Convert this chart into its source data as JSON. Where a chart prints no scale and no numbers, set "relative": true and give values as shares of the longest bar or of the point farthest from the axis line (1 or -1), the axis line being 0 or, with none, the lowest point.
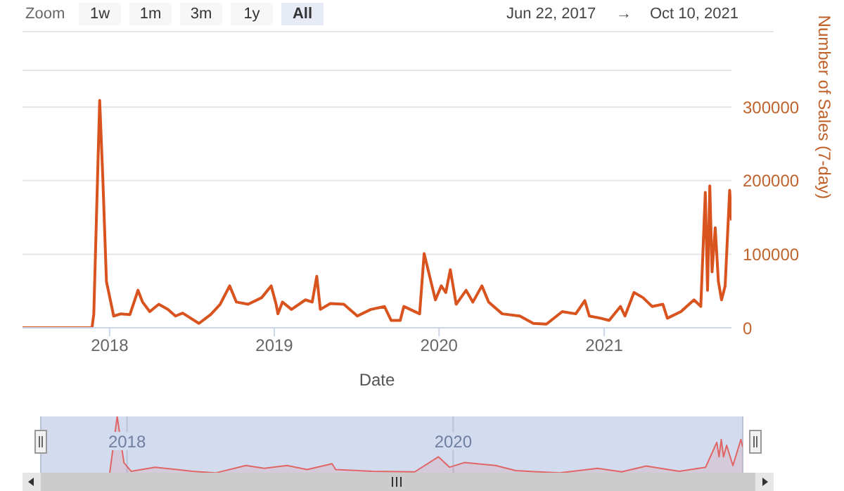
{
  "chart_data": [
    {
      "type": "line",
      "xlabel": "Date",
      "ylabel": "Number of Sales (7-day)",
      "annotations": [
        "Zoom",
        "1w",
        "1m",
        "3m",
        "1y",
        "All",
        "Jun 22, 2017",
        "→",
        "Oct 10, 2021"
      ],
      "x": [
        "2017-06-22",
        "2017-11-23",
        "2017-11-27",
        "2017-12-10",
        "2017-12-17",
        "2017-12-25",
        "2018-01-10",
        "2018-01-26",
        "2018-02-15",
        "2018-03-05",
        "2018-03-15",
        "2018-03-31",
        "2018-04-20",
        "2018-05-10",
        "2018-05-27",
        "2018-06-12",
        "2018-07-18",
        "2018-08-13",
        "2018-09-03",
        "2018-09-24",
        "2018-10-09",
        "2018-11-04",
        "2018-12-04",
        "2018-12-25",
        "2019-01-05",
        "2019-01-09",
        "2019-01-19",
        "2019-02-08",
        "2019-03-11",
        "2019-03-26",
        "2019-04-05",
        "2019-04-13",
        "2019-05-05",
        "2019-06-04",
        "2019-07-04",
        "2019-08-03",
        "2019-09-02",
        "2019-09-17",
        "2019-10-07",
        "2019-10-15",
        "2019-11-19",
        "2019-11-29",
        "2019-12-14",
        "2019-12-24",
        "2020-01-06",
        "2020-01-16",
        "2020-01-26",
        "2020-02-08",
        "2020-03-01",
        "2020-03-16",
        "2020-04-05",
        "2020-04-20",
        "2020-05-20",
        "2020-06-28",
        "2020-07-28",
        "2020-08-26",
        "2020-09-30",
        "2020-10-30",
        "2020-11-19",
        "2020-11-29",
        "2020-12-24",
        "2021-01-12",
        "2021-02-06",
        "2021-02-16",
        "2021-03-08",
        "2021-03-28",
        "2021-04-17",
        "2021-05-11",
        "2021-05-21",
        "2021-06-20",
        "2021-07-19",
        "2021-08-03",
        "2021-08-13",
        "2021-08-18",
        "2021-08-23",
        "2021-08-28",
        "2021-09-04",
        "2021-09-11",
        "2021-09-18",
        "2021-09-26",
        "2021-10-06",
        "2021-10-10"
      ],
      "series": [
        {
          "color": "#d9531e",
          "values": [
            0,
            0,
            19000,
            309000,
            203000,
            63000,
            16000,
            19000,
            18000,
            51000,
            35000,
            22000,
            32000,
            25000,
            16000,
            20000,
            6000,
            18000,
            32000,
            57000,
            35000,
            32000,
            41000,
            57000,
            32000,
            19000,
            35000,
            25000,
            38000,
            35000,
            70000,
            25000,
            33000,
            32000,
            16000,
            25000,
            29000,
            10000,
            10000,
            29000,
            19000,
            101000,
            63000,
            38000,
            57000,
            48000,
            79000,
            32000,
            51000,
            35000,
            57000,
            35000,
            19000,
            16000,
            6000,
            5000,
            22000,
            19000,
            37000,
            16000,
            13000,
            10000,
            29000,
            16000,
            48000,
            41000,
            29000,
            32000,
            13000,
            22000,
            38000,
            29000,
            184000,
            51000,
            193000,
            76000,
            136000,
            63000,
            38000,
            57000,
            187000,
            146000
          ]
        }
      ],
      "xlim": [
        "2017-06-22",
        "2021-10-10"
      ],
      "xticks": [
        "2018",
        "2019",
        "2020",
        "2021"
      ],
      "ylim": [
        0,
        350000
      ],
      "yticks": [
        0,
        100000,
        200000,
        300000
      ],
      "grid": "y"
    },
    {
      "type": "area",
      "relative": true,
      "tick_labels": "x",
      "grid": "x",
      "x": [
        "2017-06-22",
        "2017-11-23",
        "2017-12-10",
        "2017-12-25",
        "2018-01-10",
        "2018-03-05",
        "2018-05-27",
        "2018-07-18",
        "2018-09-24",
        "2018-11-04",
        "2018-12-25",
        "2019-02-08",
        "2019-04-05",
        "2019-04-13",
        "2019-07-04",
        "2019-10-07",
        "2019-11-29",
        "2019-12-24",
        "2020-01-26",
        "2020-04-05",
        "2020-05-20",
        "2020-08-26",
        "2020-11-19",
        "2021-01-12",
        "2021-03-08",
        "2021-05-21",
        "2021-07-19",
        "2021-08-13",
        "2021-08-18",
        "2021-08-23",
        "2021-08-28",
        "2021-09-04",
        "2021-09-18",
        "2021-10-06",
        "2021-10-10"
      ],
      "series": [
        {
          "color": "#e06666",
          "values": [
            0,
            0,
            1,
            0.2,
            0.05,
            0.12,
            0.05,
            0.02,
            0.15,
            0.1,
            0.15,
            0.08,
            0.18,
            0.08,
            0.05,
            0.04,
            0.3,
            0.12,
            0.2,
            0.15,
            0.06,
            0.02,
            0.1,
            0.04,
            0.14,
            0.05,
            0.12,
            0.55,
            0.3,
            0.6,
            0.3,
            0.5,
            0.15,
            0.6,
            0.47
          ]
        }
      ],
      "xlim": [
        "2017-06-22",
        "2021-10-10"
      ],
      "xticks": [
        "2018",
        "2020"
      ]
    }
  ]
}
